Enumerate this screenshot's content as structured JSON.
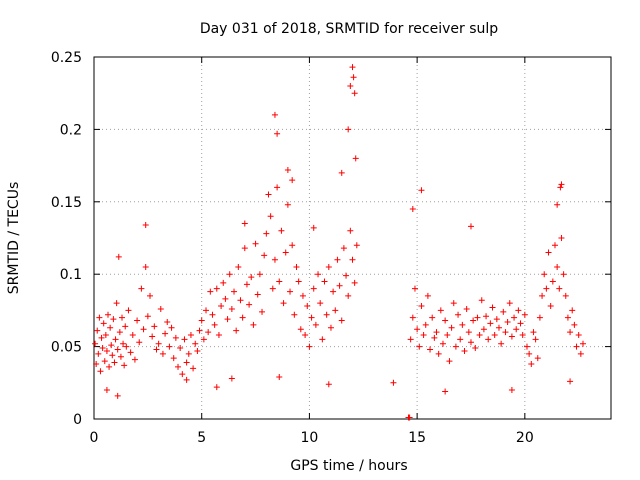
{
  "chart_data": {
    "type": "scatter",
    "title": "Day 031 of 2018, SRMTID for receiver sulp",
    "xlabel": "GPS time / hours",
    "ylabel": "SRMTID / TECUs",
    "xlim": [
      0,
      24
    ],
    "ylim": [
      0,
      0.25
    ],
    "x_ticks": [
      {
        "value": 0,
        "label": "0"
      },
      {
        "value": 5,
        "label": "5"
      },
      {
        "value": 10,
        "label": "10"
      },
      {
        "value": 15,
        "label": "15"
      },
      {
        "value": 20,
        "label": "20"
      }
    ],
    "y_ticks": [
      {
        "value": 0,
        "label": "0"
      },
      {
        "value": 0.05,
        "label": "0.05"
      },
      {
        "value": 0.1,
        "label": "0.1"
      },
      {
        "value": 0.15,
        "label": "0.15"
      },
      {
        "value": 0.2,
        "label": "0.2"
      },
      {
        "value": 0.25,
        "label": "0.25"
      }
    ],
    "grid": true,
    "marker": "+",
    "color": "#ff0000",
    "series": [
      {
        "name": "SRMTID",
        "x": [
          0.05,
          0.1,
          0.15,
          0.2,
          0.25,
          0.3,
          0.35,
          0.4,
          0.45,
          0.5,
          0.55,
          0.6,
          0.65,
          0.7,
          0.75,
          0.8,
          0.85,
          0.9,
          0.95,
          1.0,
          1.05,
          1.1,
          1.15,
          1.2,
          1.25,
          1.3,
          1.35,
          1.4,
          1.45,
          1.5,
          1.6,
          1.7,
          1.8,
          1.9,
          2.0,
          2.1,
          2.2,
          2.3,
          2.4,
          2.5,
          2.6,
          2.7,
          2.8,
          2.9,
          3.0,
          3.1,
          3.2,
          3.3,
          3.4,
          3.5,
          3.6,
          3.7,
          3.8,
          3.9,
          4.0,
          4.1,
          4.2,
          4.3,
          4.4,
          4.5,
          4.6,
          4.7,
          4.8,
          4.9,
          5.0,
          5.1,
          5.2,
          5.3,
          5.4,
          5.5,
          5.6,
          5.7,
          5.8,
          5.9,
          6.0,
          6.1,
          6.2,
          6.3,
          6.4,
          6.5,
          6.6,
          6.7,
          6.8,
          6.9,
          7.0,
          7.1,
          7.2,
          7.3,
          7.4,
          7.5,
          7.6,
          7.7,
          7.8,
          7.9,
          8.0,
          8.1,
          8.2,
          8.3,
          8.4,
          8.5,
          8.6,
          8.7,
          8.8,
          8.9,
          9.0,
          9.1,
          9.2,
          9.3,
          9.4,
          9.5,
          9.6,
          9.7,
          9.8,
          9.9,
          10.0,
          10.1,
          10.2,
          10.3,
          10.4,
          10.5,
          10.6,
          10.7,
          10.8,
          10.9,
          11.0,
          11.1,
          11.2,
          11.3,
          11.4,
          11.5,
          11.6,
          11.7,
          11.8,
          11.9,
          12.0,
          12.1,
          12.2,
          14.7,
          14.8,
          14.9,
          15.0,
          15.1,
          15.2,
          15.3,
          15.4,
          15.5,
          15.6,
          15.7,
          15.8,
          15.9,
          16.0,
          16.1,
          16.2,
          16.3,
          16.4,
          16.5,
          16.6,
          16.7,
          16.8,
          16.9,
          17.0,
          17.1,
          17.2,
          17.3,
          17.4,
          17.5,
          17.6,
          17.7,
          17.8,
          17.9,
          18.0,
          18.1,
          18.2,
          18.3,
          18.4,
          18.5,
          18.6,
          18.7,
          18.8,
          18.9,
          19.0,
          19.1,
          19.2,
          19.3,
          19.4,
          19.5,
          19.6,
          19.7,
          19.8,
          19.9,
          20.0,
          20.1,
          20.2,
          20.3,
          20.4,
          20.5,
          20.6,
          20.7,
          20.8,
          20.9,
          21.0,
          21.1,
          21.2,
          21.3,
          21.4,
          21.5,
          21.6,
          21.7,
          21.8,
          21.9,
          22.0,
          22.1,
          22.2,
          22.3,
          22.4,
          22.5,
          22.6,
          22.7,
          2.4,
          7.0,
          8.4,
          8.5,
          9.0,
          9.2,
          10.2,
          11.5,
          11.8,
          11.9,
          12.0,
          12.05,
          12.1,
          12.15,
          14.8,
          15.2,
          17.5,
          21.5,
          21.65,
          21.7,
          14.6,
          14.65,
          4.3,
          1.1,
          0.6,
          5.7,
          6.4,
          8.6,
          10.9,
          13.9,
          16.3,
          19.4,
          22.1
        ],
        "y": [
          0.052,
          0.038,
          0.061,
          0.045,
          0.07,
          0.033,
          0.056,
          0.049,
          0.066,
          0.04,
          0.058,
          0.047,
          0.072,
          0.036,
          0.063,
          0.051,
          0.044,
          0.069,
          0.039,
          0.055,
          0.08,
          0.048,
          0.112,
          0.06,
          0.043,
          0.07,
          0.052,
          0.037,
          0.064,
          0.05,
          0.075,
          0.046,
          0.058,
          0.041,
          0.068,
          0.053,
          0.09,
          0.062,
          0.105,
          0.071,
          0.085,
          0.057,
          0.064,
          0.048,
          0.052,
          0.076,
          0.045,
          0.059,
          0.067,
          0.05,
          0.063,
          0.042,
          0.056,
          0.036,
          0.049,
          0.031,
          0.055,
          0.039,
          0.045,
          0.058,
          0.035,
          0.052,
          0.047,
          0.061,
          0.068,
          0.055,
          0.075,
          0.06,
          0.088,
          0.072,
          0.065,
          0.09,
          0.058,
          0.078,
          0.094,
          0.083,
          0.069,
          0.1,
          0.076,
          0.088,
          0.061,
          0.105,
          0.082,
          0.07,
          0.118,
          0.093,
          0.079,
          0.098,
          0.065,
          0.121,
          0.086,
          0.1,
          0.074,
          0.113,
          0.128,
          0.155,
          0.14,
          0.09,
          0.11,
          0.16,
          0.095,
          0.13,
          0.08,
          0.115,
          0.148,
          0.088,
          0.12,
          0.072,
          0.105,
          0.095,
          0.062,
          0.085,
          0.058,
          0.078,
          0.05,
          0.07,
          0.09,
          0.065,
          0.1,
          0.08,
          0.055,
          0.095,
          0.072,
          0.105,
          0.063,
          0.088,
          0.075,
          0.11,
          0.092,
          0.068,
          0.118,
          0.099,
          0.085,
          0.13,
          0.11,
          0.094,
          0.12,
          0.055,
          0.07,
          0.09,
          0.062,
          0.05,
          0.078,
          0.058,
          0.065,
          0.085,
          0.048,
          0.07,
          0.056,
          0.06,
          0.045,
          0.075,
          0.052,
          0.068,
          0.058,
          0.04,
          0.063,
          0.08,
          0.05,
          0.072,
          0.055,
          0.065,
          0.047,
          0.076,
          0.06,
          0.053,
          0.068,
          0.049,
          0.07,
          0.058,
          0.082,
          0.062,
          0.071,
          0.055,
          0.066,
          0.077,
          0.058,
          0.069,
          0.063,
          0.052,
          0.074,
          0.06,
          0.067,
          0.08,
          0.057,
          0.07,
          0.062,
          0.075,
          0.066,
          0.058,
          0.072,
          0.05,
          0.045,
          0.038,
          0.06,
          0.055,
          0.042,
          0.07,
          0.085,
          0.1,
          0.09,
          0.115,
          0.078,
          0.095,
          0.12,
          0.105,
          0.09,
          0.125,
          0.1,
          0.085,
          0.07,
          0.06,
          0.075,
          0.065,
          0.05,
          0.058,
          0.045,
          0.052,
          0.134,
          0.135,
          0.21,
          0.197,
          0.172,
          0.165,
          0.132,
          0.17,
          0.2,
          0.23,
          0.243,
          0.236,
          0.225,
          0.18,
          0.145,
          0.158,
          0.133,
          0.148,
          0.16,
          0.162,
          0.001,
          0.001,
          0.027,
          0.016,
          0.02,
          0.022,
          0.028,
          0.029,
          0.024,
          0.025,
          0.019,
          0.02,
          0.026
        ]
      }
    ]
  }
}
